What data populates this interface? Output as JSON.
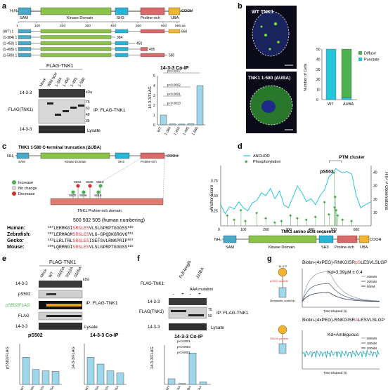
{
  "colors": {
    "sam": "#4aa8c9",
    "kinase": "#8bc34a",
    "sh3": "#29b6d6",
    "pro": "#d86a6a",
    "uba": "#f2b531",
    "red": "#d32f2f",
    "green": "#4caf50",
    "cyan": "#26c6da",
    "bar": "#9ed6ea",
    "grey": "#777777"
  },
  "labels": {
    "a": "a",
    "b": "b",
    "c": "c",
    "d": "d",
    "e": "e",
    "f": "f",
    "g": "g"
  },
  "panel_a": {
    "nterm": "H₂N",
    "cterm": "COOH",
    "domains": [
      "SAM",
      "Kinase Domain",
      "SH3",
      "Proline-rich",
      "UBA"
    ],
    "axis_ticks": [
      "1",
      "100",
      "200",
      "300",
      "400",
      "500",
      "600",
      "666 aa"
    ],
    "constructs": [
      {
        "label": "(WT) 1",
        "end": "666"
      },
      {
        "label": "(1-384) 1",
        "end": "384"
      },
      {
        "label": "(1-450) 1",
        "end": "450"
      },
      {
        "label": "(1-495) 1",
        "end": "495"
      },
      {
        "label": "(1-580) 1",
        "end": "580"
      }
    ],
    "blot_header": "FLAG-TNK1",
    "lanes": [
      "Mock",
      "Wild type",
      "1-384",
      "1-450",
      "1-495",
      "1-580"
    ],
    "rows": [
      "14-3-3",
      "FLAG(TNK1)",
      "14-3-3"
    ],
    "ladder_unit": "kDa",
    "ladder": [
      "75",
      "63",
      "48",
      "35"
    ],
    "ip_label": "IP: FLAG-TNK1",
    "lysate_label": "Lysate",
    "chart_title": "14-3-3 Co-IP",
    "ylabel": "14-3-3/FLAG",
    "pvals": [
      "p<0.0007",
      "p<0.0002",
      "p<0.0001",
      "p=0.0023"
    ],
    "chart_ticks": [
      "5",
      "4",
      "3",
      "2",
      "1",
      "0"
    ]
  },
  "panel_b": {
    "img1_title": "WT TNK1",
    "img2_title": "TNK1 1-580 (ΔUBA)",
    "ylabel": "Number of Cells",
    "ticks": [
      "50",
      "40",
      "30",
      "20",
      "10",
      "0"
    ],
    "legend": [
      "Diffuse",
      "Punctate"
    ],
    "xcats": [
      "WT",
      "ΔUBA"
    ]
  },
  "panel_c": {
    "title": "TNK1 1-580 C-terminal truncation (ΔUBA)",
    "nterm": "NH₂",
    "cterm": "COOH",
    "domains": [
      "SAM",
      "Kinase Domain",
      "SH3",
      "Proline-rich"
    ],
    "legend": [
      "Increase",
      "No change",
      "Decrease"
    ],
    "sites": [
      "S502",
      "S508",
      "S519",
      "S500",
      "S505",
      "S518"
    ],
    "domain_label": "TNK1 Proline-rich domain",
    "numbering": "500 502 505 (human numbering)",
    "species": [
      {
        "name": "Human:",
        "start": "497",
        "pre": "LERMKGI",
        "mid": "SRSLES",
        "post": "VLSLGPRPTGGGSS",
        "end": "519"
      },
      {
        "name": "Zebrafish:",
        "start": "497",
        "pre": "LERMAGM",
        "mid": "SRSLES",
        "post": "VLG-GPQDKGRGVG",
        "end": "512"
      },
      {
        "name": "Gecko:",
        "start": "493",
        "pre": "LLRLTRL",
        "mid": "SRSLES",
        "post": "ISEFSVLRNKPRIP",
        "end": "507"
      },
      {
        "name": "Mouse:",
        "start": "499",
        "pre": "LQRMRGI",
        "mid": "SRSLES",
        "post": "VLSLGPRPTGGGSS",
        "end": "515"
      }
    ]
  },
  "panel_d": {
    "legend": [
      "ANCHOR",
      "Phosphorylation"
    ],
    "cluster_label": "PTM cluster",
    "site_label": "pS502",
    "ylabel": "Anchor Score",
    "y2label": "HTP P Observations",
    "xlabel": "TNK1 amino acid sequence",
    "yticks": [
      "0.75",
      "0.50",
      "0.25"
    ],
    "y2ticks": [
      "40",
      "30",
      "20",
      "10"
    ],
    "xticks": [
      "0",
      "100",
      "200",
      "300",
      "400",
      "500",
      "600"
    ],
    "nterm": "NH₂",
    "cterm": "COOH",
    "domains": [
      "SAM",
      "Kinase Domain",
      "SH3",
      "Proline-rich",
      "UBA"
    ]
  },
  "panel_e": {
    "blot_header": "FLAG-TNK1",
    "lanes": [
      "Mock",
      "WT",
      "S500A",
      "S502A",
      "S505A"
    ],
    "rows": [
      "14-3-3",
      "pS502",
      "pS502/FLAG",
      "FLAG",
      "14-3-3"
    ],
    "ladder_unit": "kDa",
    "ip_label": "IP: FLAG-TNK1",
    "lysate_label": "Lysate",
    "chart1_title": "pS502",
    "chart1_ylabel": "pS502/FLAG",
    "chart2_title": "14-3-3 Co-IP",
    "chart2_ylabel": "14-3-3/FLAG",
    "xcats": [
      "WT",
      "S500A",
      "S502A",
      "S505A"
    ]
  },
  "panel_f": {
    "header": "FLAG-TNK1:",
    "lanes": [
      "Full-length",
      "ΔUBA"
    ],
    "mutation": "AAA mutation",
    "signs": [
      "-",
      "+",
      "-",
      "+"
    ],
    "rows": [
      "14-3-3",
      "FLAG(TNK1)",
      "14-3-3"
    ],
    "ladder": [
      "75",
      "50"
    ],
    "ip_label": "IP: FLAG-TNK1",
    "lysate_label": "Lysate",
    "chart_title": "14-3-3 Co-IP",
    "ylabel": "14-3-3/FLAG",
    "xcats": [
      "WT",
      "AAA",
      "ΔUBA",
      "ΔUBA-AAA"
    ],
    "pvals": [
      "p<0.0001",
      "p<0.0004",
      "p<0.0001"
    ]
  },
  "panel_g": {
    "top_title_pre": "Biotin-(4xPEG)-RNKGISR",
    "top_title_mid": "pS",
    "top_title_post": "LESVLSLGP",
    "kd": "Kd=3.39μM ± 0.4",
    "top_legend": [
      "400nM",
      "200nM",
      "50nM"
    ],
    "bot_title_pre": "Biotin-(4xPEG)-RNKGISR",
    "bot_title_mid": "A",
    "bot_title_post": "LESVLSLGP",
    "kd2": "Kd=Ambiguous",
    "bot_legend": [
      "500nM",
      "300nM",
      "200nM"
    ],
    "xlabel": "Time Elapsed (s)",
    "peptide1": "pS502 peptide",
    "peptide2": "S502A peptide",
    "sensor": "Streptavidin coated tip",
    "protein": "14-3-3"
  }
}
